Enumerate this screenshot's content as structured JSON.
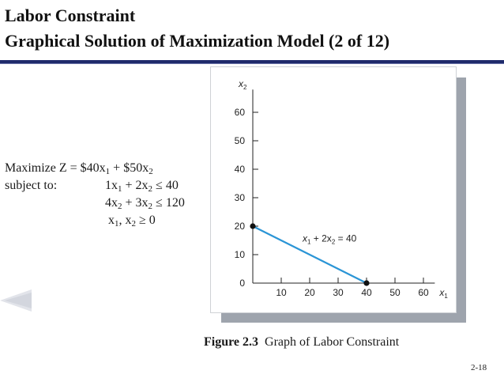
{
  "slide": {
    "title_line1": "Labor Constraint",
    "title_line2": "Graphical Solution of Maximization Model (2 of 12)",
    "page_number": "2-18"
  },
  "model": {
    "objective_label": "Maximize Z = $40x",
    "objective_sub1": "1",
    "objective_mid": " + $50x",
    "objective_sub2": "2",
    "subject_label": "subject to:",
    "c1_a": "1x",
    "c1_sub1": "1",
    "c1_b": " + 2x",
    "c1_sub2": "2",
    "c1_c": " ≤ 40",
    "c2_a": "4x",
    "c2_sub1": "2",
    "c2_b": " + 3x",
    "c2_sub2": "2",
    "c2_c": " ≤ 120",
    "c3_a": "x",
    "c3_sub1": "1",
    "c3_b": ", x",
    "c3_sub2": "2",
    "c3_c": " ≥ 0"
  },
  "caption": {
    "figure": "Figure 2.3",
    "text": "Graph of Labor Constraint"
  },
  "chart_data": {
    "type": "line",
    "title": "",
    "xlabel": "x1",
    "ylabel": "x2",
    "xlim": [
      0,
      70
    ],
    "ylim": [
      0,
      70
    ],
    "x_ticks": [
      10,
      20,
      30,
      40,
      50,
      60
    ],
    "y_ticks": [
      0,
      10,
      20,
      30,
      40,
      50,
      60
    ],
    "grid": false,
    "series": [
      {
        "name": "x1 + 2x2 = 40",
        "color": "#2b95d6",
        "x": [
          0,
          40
        ],
        "y": [
          20,
          0
        ]
      }
    ],
    "points": [
      {
        "x": 0,
        "y": 20
      },
      {
        "x": 40,
        "y": 0
      }
    ],
    "annotation": {
      "text_a": "x",
      "sub_a": "1",
      "text_b": " + 2x",
      "sub_b": "2",
      "text_c": " = 40"
    }
  }
}
